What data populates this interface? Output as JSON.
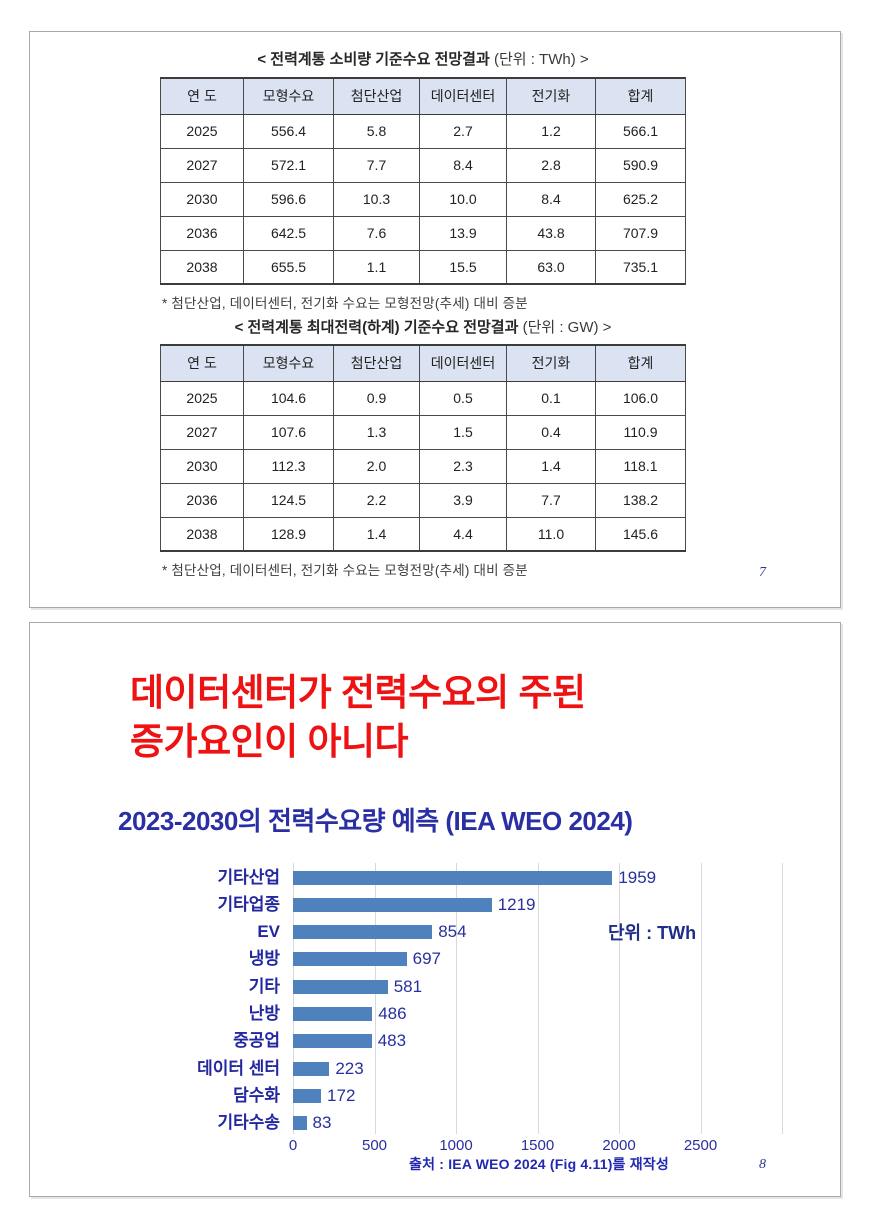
{
  "slide1": {
    "page_number": "7",
    "tables": [
      {
        "title": "< 전력계통 소비량 기준수요 전망결과",
        "title_unit": " (단위 : TWh) >",
        "headers": [
          "연 도",
          "모형수요",
          "첨단산업",
          "데이터센터",
          "전기화",
          "합계"
        ],
        "rows": [
          [
            "2025",
            "556.4",
            "5.8",
            "2.7",
            "1.2",
            "566.1"
          ],
          [
            "2027",
            "572.1",
            "7.7",
            "8.4",
            "2.8",
            "590.9"
          ],
          [
            "2030",
            "596.6",
            "10.3",
            "10.0",
            "8.4",
            "625.2"
          ],
          [
            "2036",
            "642.5",
            "7.6",
            "13.9",
            "43.8",
            "707.9"
          ],
          [
            "2038",
            "655.5",
            "1.1",
            "15.5",
            "63.0",
            "735.1"
          ]
        ],
        "footnote": "* 첨단산업, 데이터센터, 전기화 수요는 모형전망(추세) 대비 증분"
      },
      {
        "title": "< 전력계통 최대전력(하계) 기준수요 전망결과",
        "title_unit": " (단위 : GW) >",
        "headers": [
          "연 도",
          "모형수요",
          "첨단산업",
          "데이터센터",
          "전기화",
          "합계"
        ],
        "rows": [
          [
            "2025",
            "104.6",
            "0.9",
            "0.5",
            "0.1",
            "106.0"
          ],
          [
            "2027",
            "107.6",
            "1.3",
            "1.5",
            "0.4",
            "110.9"
          ],
          [
            "2030",
            "112.3",
            "2.0",
            "2.3",
            "1.4",
            "118.1"
          ],
          [
            "2036",
            "124.5",
            "2.2",
            "3.9",
            "7.7",
            "138.2"
          ],
          [
            "2038",
            "128.9",
            "1.4",
            "4.4",
            "11.0",
            "145.6"
          ]
        ],
        "footnote": "* 첨단산업, 데이터센터, 전기화 수요는 모형전망(추세) 대비 증분"
      }
    ]
  },
  "slide2": {
    "page_number": "8",
    "title_lines": [
      "데이터센터가 전력수요의 주된",
      "증가요인이 아니다"
    ],
    "subtitle": "2023-2030의 전력수요량 예측 (IEA WEO 2024)",
    "unit_label": "단위 : TWh",
    "source": "출처 : IEA WEO 2024 (Fig 4.11)를 재작성"
  },
  "chart_data": {
    "type": "bar",
    "orientation": "horizontal",
    "title": "2023-2030의 전력수요량 예측 (IEA WEO 2024)",
    "unit": "TWh",
    "categories": [
      "기타산업",
      "기타업종",
      "EV",
      "냉방",
      "기타",
      "난방",
      "중공업",
      "데이터 센터",
      "담수화",
      "기타수송"
    ],
    "values": [
      1959,
      1219,
      854,
      697,
      581,
      486,
      483,
      223,
      172,
      83
    ],
    "xlim": [
      0,
      3000
    ],
    "xticks": [
      0,
      500,
      1000,
      1500,
      2000,
      2500
    ],
    "grid": true,
    "legend": false,
    "bar_color": "#4f81bd",
    "value_labels": true
  },
  "colors": {
    "accent_red": "#ee1212",
    "accent_blue": "#2a2fa3",
    "navy_text": "#27309e",
    "bar_blue": "#4f81bd",
    "table_header_bg": "#dbe2f1",
    "grid_gray": "#d9d9d9"
  }
}
